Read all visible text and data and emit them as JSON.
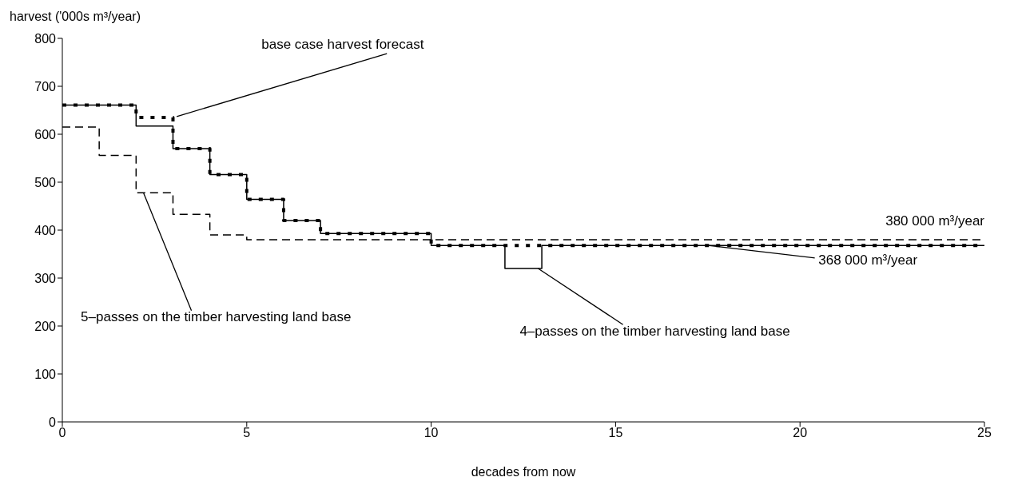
{
  "chart_data": {
    "type": "step",
    "ylabel": "harvest ('000s m³/year)",
    "xlabel": "decades from now",
    "xlim": [
      0,
      25
    ],
    "xticks": [
      0,
      5,
      10,
      15,
      20,
      25
    ],
    "ylim": [
      0,
      800
    ],
    "yticks": [
      0,
      100,
      200,
      300,
      400,
      500,
      600,
      700,
      800
    ],
    "grid": false,
    "series": [
      {
        "color": "#000000",
        "line_style": "solid",
        "x": [
          0,
          2,
          3,
          4,
          5,
          6,
          7,
          10,
          12,
          13,
          25
        ],
        "values": [
          661,
          617,
          570,
          516,
          464,
          420,
          393,
          368,
          320,
          368,
          368
        ]
      },
      {
        "color": "#000000",
        "line_style": "dashed",
        "x": [
          0,
          1,
          2,
          3,
          4,
          5,
          25
        ],
        "values": [
          615,
          556,
          478,
          433,
          390,
          380,
          380
        ]
      },
      {
        "color": "#000000",
        "line_style": "dotted",
        "x": [
          0,
          2,
          3,
          4,
          5,
          6,
          7,
          10,
          25
        ],
        "values": [
          661,
          635,
          570,
          516,
          464,
          420,
          393,
          368,
          368
        ]
      }
    ],
    "annotations": [
      {
        "text": "base case harvest forecast",
        "x": 3.1,
        "y": 637
      },
      {
        "text": "5–passes on the timber harvesting land base",
        "x": 2.2,
        "y": 478
      },
      {
        "text": "4–passes on the timber harvesting land base",
        "x": 12.9,
        "y": 320
      },
      {
        "text": "380 000 m³/year",
        "x": 25,
        "y": 380
      },
      {
        "text": "368 000 m³/year",
        "x": 17.5,
        "y": 368
      }
    ]
  }
}
